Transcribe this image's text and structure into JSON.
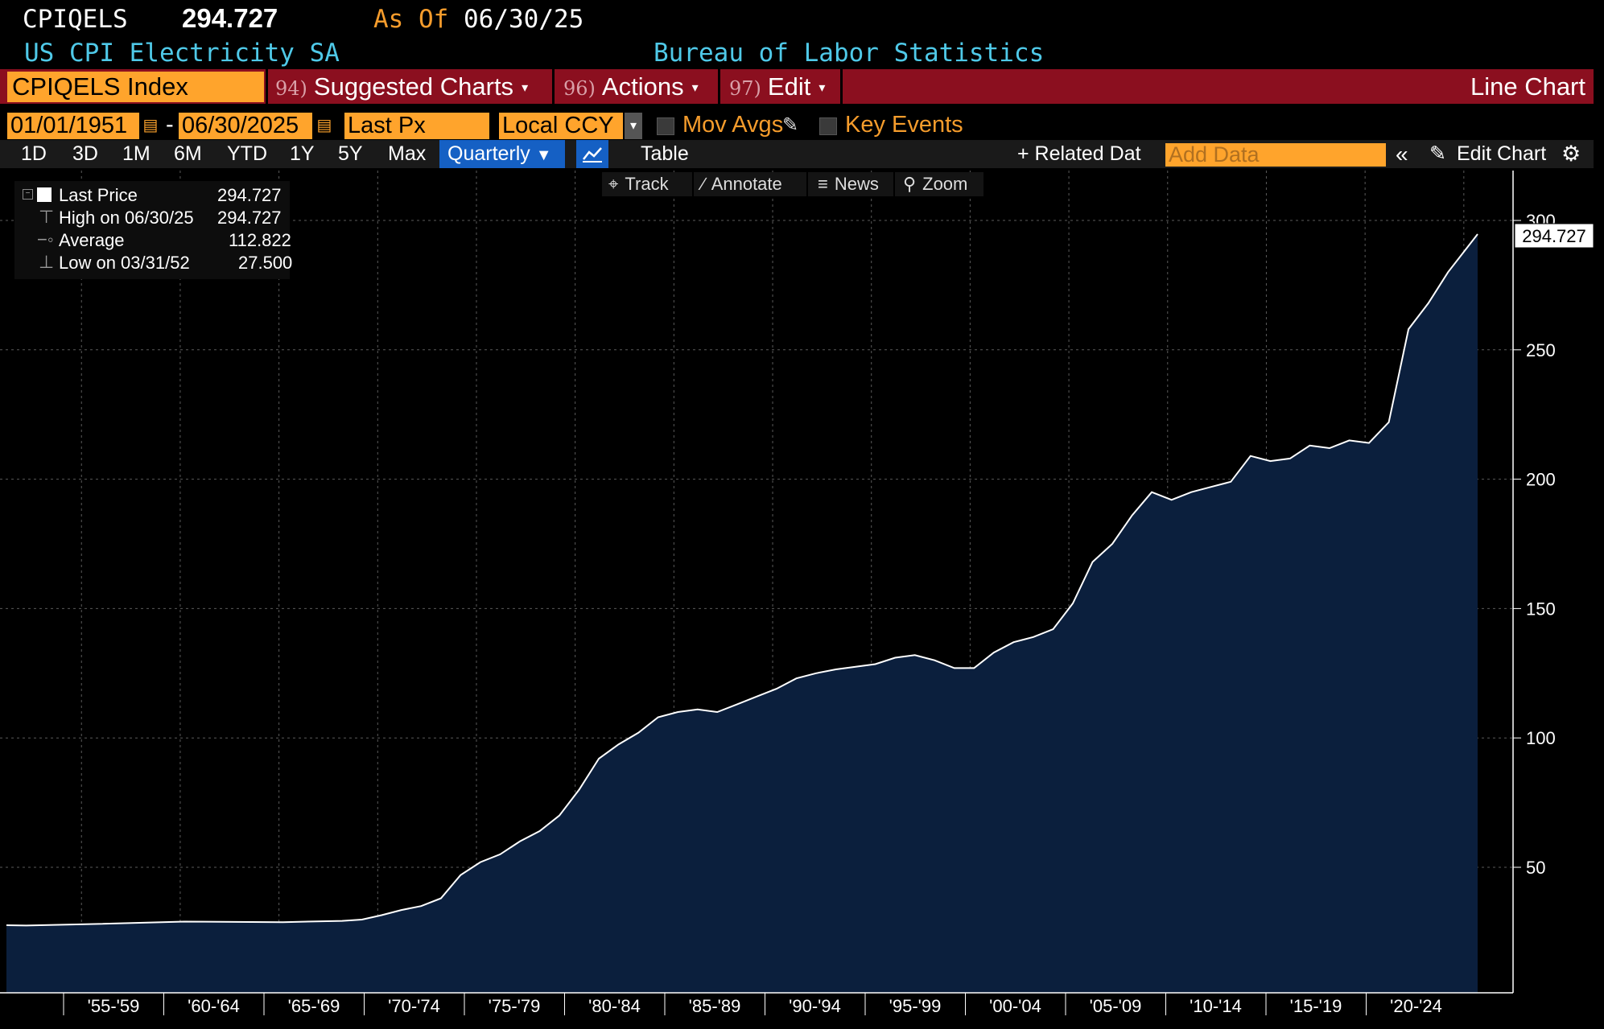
{
  "header": {
    "ticker": "CPIQELS",
    "price": "294.727",
    "asof_label": "As Of",
    "asof_date": "06/30/25",
    "description": "US CPI Electricity SA",
    "source": "Bureau of Labor Statistics"
  },
  "toolbar": {
    "security": "CPIQELS Index",
    "suggested_num": "94)",
    "suggested_label": "Suggested Charts",
    "actions_num": "96)",
    "actions_label": "Actions",
    "edit_num": "97)",
    "edit_label": "Edit",
    "chart_type": "Line Chart"
  },
  "range": {
    "start": "01/01/1951",
    "dash": "-",
    "end": "06/30/2025",
    "field": "Last Px",
    "currency": "Local CCY",
    "mov_avgs": "Mov Avgs",
    "key_events": "Key Events"
  },
  "periods": [
    "1D",
    "3D",
    "1M",
    "6M",
    "YTD",
    "1Y",
    "5Y",
    "Max"
  ],
  "frequency": "Quarterly",
  "table_label": "Table",
  "related_data": "+ Related Dat",
  "add_data_placeholder": "Add Data",
  "edit_chart": "Edit Chart",
  "tools": [
    "Track",
    "Annotate",
    "News",
    "Zoom"
  ],
  "legend": {
    "last_label": "Last Price",
    "last_value": "294.727",
    "high_label": "High on 06/30/25",
    "high_value": "294.727",
    "avg_label": "Average",
    "avg_value": "112.822",
    "low_label": "Low on 03/31/52",
    "low_value": "27.500"
  },
  "colors": {
    "area_fill": "#0b1f3d",
    "line": "#ffffff",
    "accent": "#ffa42c",
    "bar": "#8b0f1f"
  },
  "chart_data": {
    "type": "area",
    "ylim": [
      18,
      320
    ],
    "y_ticks": [
      50,
      100,
      150,
      200,
      250,
      300
    ],
    "x_ticks": [
      "'55-'59",
      "'60-'64",
      "'65-'69",
      "'70-'74",
      "'75-'79",
      "'80-'84",
      "'85-'89",
      "'90-'94",
      "'95-'99",
      "'00-'04",
      "'05-'09",
      "'10-'14",
      "'15-'19",
      "'20-'24"
    ],
    "last_value_label": "294.727",
    "grid": true,
    "series": [
      {
        "x": [
          1951,
          1952,
          1955,
          1960,
          1965,
          1968,
          1969,
          1970,
          1971,
          1972,
          1973,
          1974,
          1975,
          1976,
          1977,
          1978,
          1979,
          1980,
          1981,
          1982,
          1983,
          1984,
          1985,
          1986,
          1987,
          1988,
          1989,
          1990,
          1991,
          1992,
          1993,
          1994,
          1995,
          1996,
          1997,
          1998,
          1999,
          2000,
          2001,
          2002,
          2003,
          2004,
          2005,
          2006,
          2007,
          2008,
          2009,
          2010,
          2011,
          2012,
          2013,
          2014,
          2015,
          2016,
          2017,
          2018,
          2019,
          2020,
          2021,
          2022,
          2023,
          2024,
          2025.5
        ],
        "y": [
          27.6,
          27.5,
          28.0,
          29.0,
          28.8,
          29.3,
          29.8,
          31.5,
          33.5,
          35.0,
          38.0,
          47.0,
          52.0,
          55.0,
          60.0,
          64.0,
          70.0,
          80.0,
          92.0,
          97.5,
          102.0,
          108.0,
          110.0,
          111.0,
          110.0,
          113.0,
          116.0,
          119.0,
          123.0,
          125.0,
          126.5,
          127.5,
          128.5,
          131.0,
          132.0,
          130.0,
          127.0,
          127.0,
          133.0,
          137.0,
          139.0,
          142.0,
          152.0,
          168.0,
          175.0,
          186.0,
          195.0,
          192.0,
          195.0,
          197.0,
          199.0,
          209.0,
          207.0,
          208.0,
          213.0,
          212.0,
          215.0,
          214.0,
          222.0,
          258.0,
          268.0,
          280.0,
          294.727
        ]
      }
    ]
  }
}
